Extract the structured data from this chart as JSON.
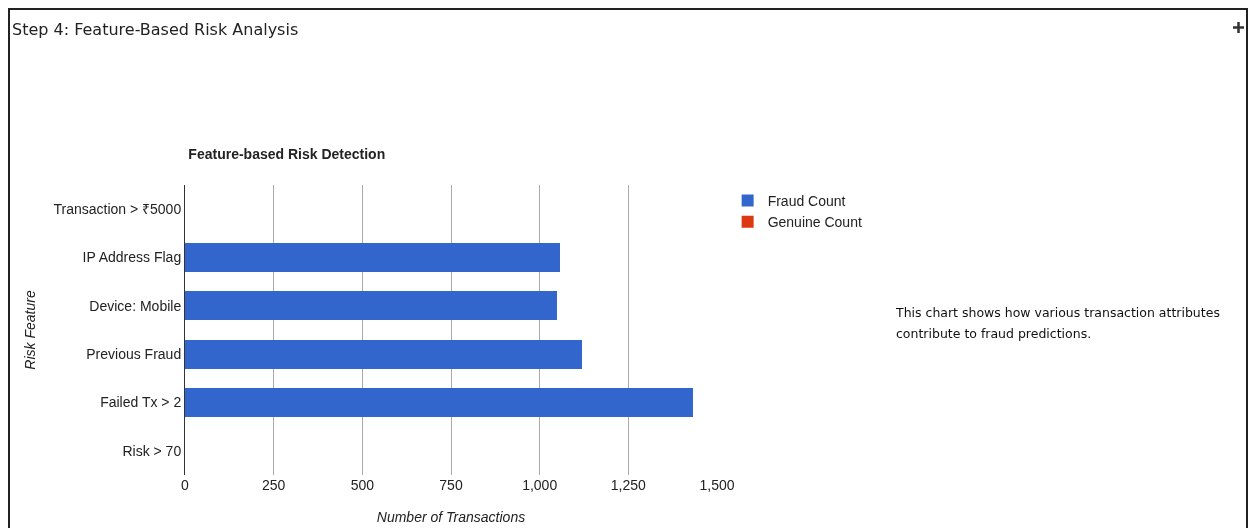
{
  "chart_data": {
    "type": "bar",
    "orientation": "horizontal",
    "stacked": true,
    "title": "Step 4: Feature-Based Risk Analysis",
    "subtitle": "Feature-based Risk Detection",
    "xlabel": "Number of Transactions",
    "ylabel": "Risk Feature",
    "categories": [
      "Transaction > ₹5000",
      "IP Address Flag",
      "Device: Mobile",
      "Previous Fraud",
      "Failed Tx > 2",
      "Risk > 70"
    ],
    "series": [
      {
        "name": "Fraud Count",
        "color": "#3366cc",
        "values": [
          null,
          1058,
          1050,
          1118,
          1433,
          null
        ]
      },
      {
        "name": "Genuine Count",
        "color": "#dc3912",
        "values": [
          null,
          null,
          null,
          null,
          null,
          null
        ]
      }
    ],
    "xlim": [
      0,
      1500
    ],
    "xticks": [
      0,
      250,
      500,
      750,
      {
        "value": 1000,
        "label": "1,000"
      },
      {
        "value": 1250,
        "label": "1,250"
      },
      {
        "value": 1500,
        "label": "1,500"
      }
    ],
    "grid": "x",
    "legend": "right",
    "annotations": [
      "This chart shows how various transaction attributes contribute to fraud predictions."
    ]
  }
}
